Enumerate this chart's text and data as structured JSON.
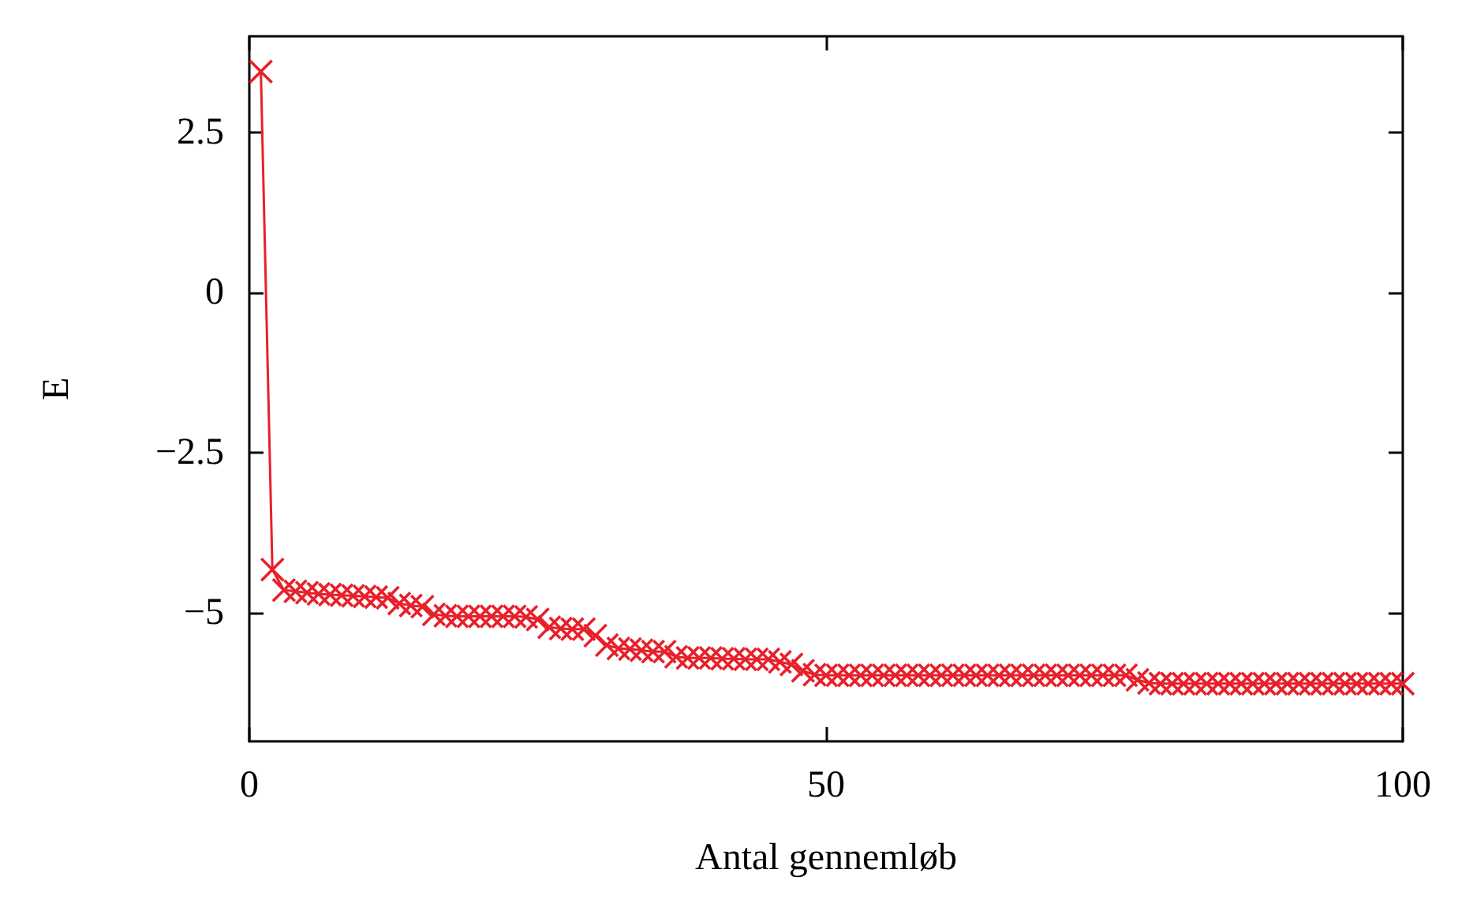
{
  "chart_data": {
    "type": "line",
    "xlabel": "Antal gennemløb",
    "ylabel": "E",
    "x": [
      1,
      2,
      3,
      4,
      5,
      6,
      7,
      8,
      9,
      10,
      11,
      12,
      13,
      14,
      15,
      16,
      17,
      18,
      19,
      20,
      21,
      22,
      23,
      24,
      25,
      26,
      27,
      28,
      29,
      30,
      31,
      32,
      33,
      34,
      35,
      36,
      37,
      38,
      39,
      40,
      41,
      42,
      43,
      44,
      45,
      46,
      47,
      48,
      49,
      50,
      51,
      52,
      53,
      54,
      55,
      56,
      57,
      58,
      59,
      60,
      61,
      62,
      63,
      64,
      65,
      66,
      67,
      68,
      69,
      70,
      71,
      72,
      73,
      74,
      75,
      76,
      77,
      78,
      79,
      80,
      81,
      82,
      83,
      84,
      85,
      86,
      87,
      88,
      89,
      90,
      91,
      92,
      93,
      94,
      95,
      96,
      97,
      98,
      99,
      100
    ],
    "series": [
      {
        "color": "#e8202a",
        "values": [
          3.45,
          -4.32,
          -4.64,
          -4.66,
          -4.68,
          -4.7,
          -4.71,
          -4.72,
          -4.73,
          -4.74,
          -4.75,
          -4.76,
          -4.85,
          -4.88,
          -4.9,
          -5.02,
          -5.04,
          -5.05,
          -5.05,
          -5.05,
          -5.05,
          -5.05,
          -5.05,
          -5.06,
          -5.1,
          -5.22,
          -5.24,
          -5.25,
          -5.25,
          -5.35,
          -5.5,
          -5.55,
          -5.56,
          -5.58,
          -5.6,
          -5.6,
          -5.68,
          -5.7,
          -5.7,
          -5.7,
          -5.71,
          -5.71,
          -5.72,
          -5.72,
          -5.72,
          -5.76,
          -5.8,
          -5.9,
          -5.96,
          -5.97,
          -5.97,
          -5.97,
          -5.97,
          -5.97,
          -5.97,
          -5.97,
          -5.97,
          -5.97,
          -5.97,
          -5.97,
          -5.97,
          -5.97,
          -5.97,
          -5.97,
          -5.97,
          -5.97,
          -5.97,
          -5.97,
          -5.97,
          -5.97,
          -5.97,
          -5.97,
          -5.97,
          -5.97,
          -5.97,
          -5.97,
          -6.04,
          -6.09,
          -6.1,
          -6.1,
          -6.1,
          -6.1,
          -6.1,
          -6.1,
          -6.1,
          -6.1,
          -6.1,
          -6.1,
          -6.1,
          -6.1,
          -6.1,
          -6.1,
          -6.1,
          -6.1,
          -6.1,
          -6.1,
          -6.1,
          -6.1,
          -6.1,
          -6.1
        ]
      }
    ],
    "xlim": [
      0,
      100
    ],
    "xticks": [
      0,
      50,
      100
    ],
    "ylim": [
      -7,
      4
    ],
    "yticks": [
      {
        "value": -5,
        "label": "−5"
      },
      {
        "value": -2.5,
        "label": "−2.5"
      },
      0,
      2.5
    ],
    "grid": false,
    "marker": "cross",
    "line_style": "solid"
  }
}
